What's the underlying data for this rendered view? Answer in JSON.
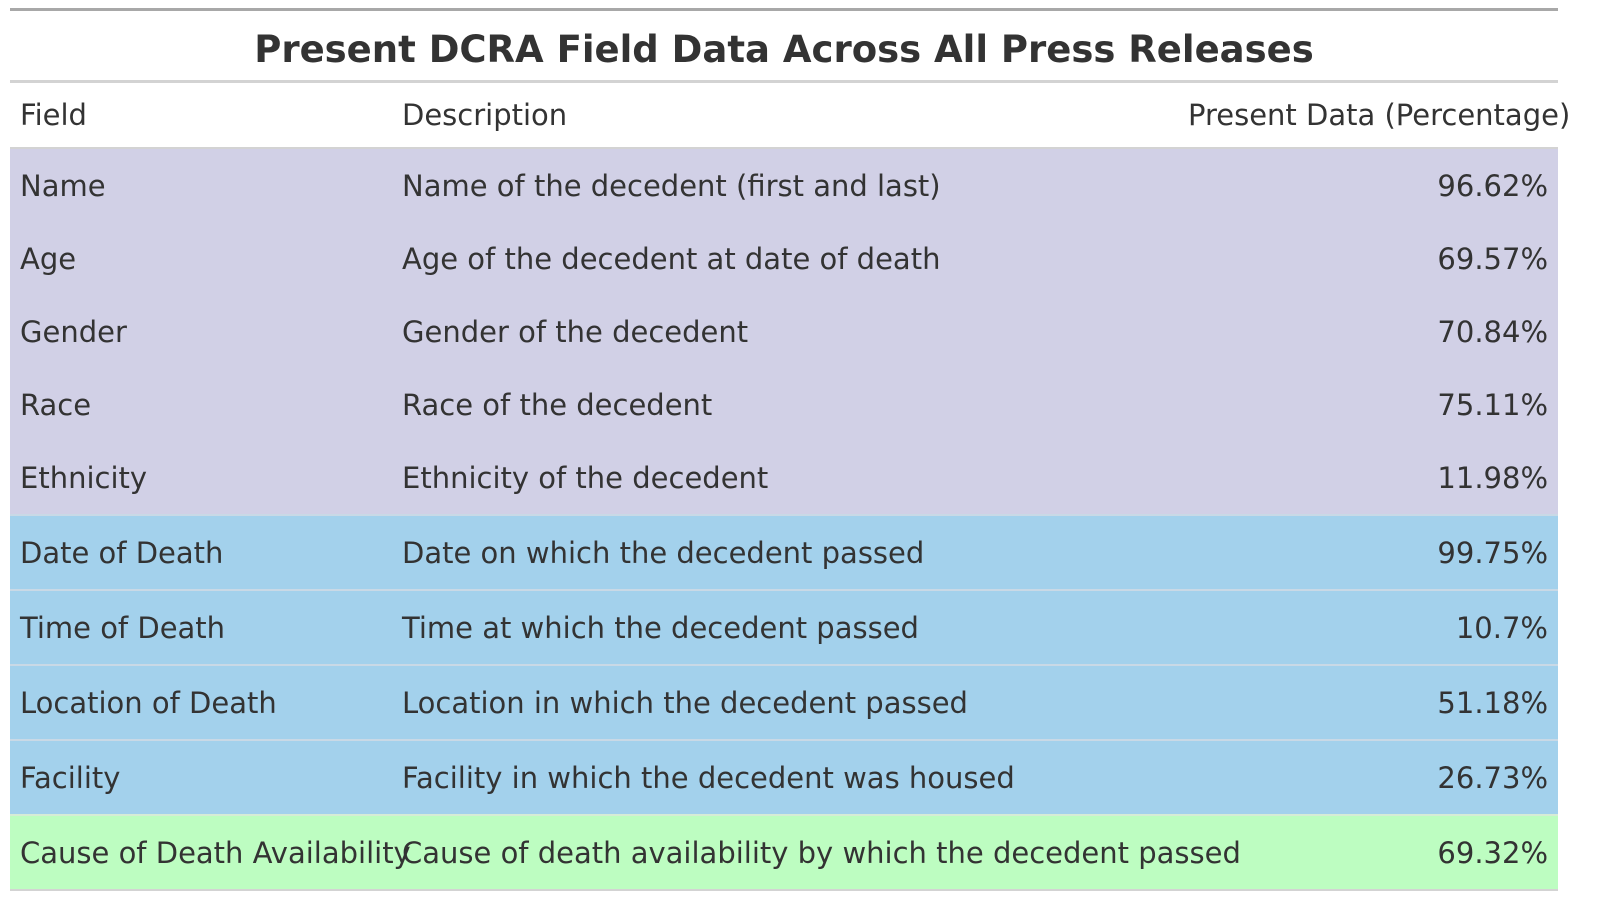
{
  "table": {
    "title": "Present DCRA Field Data Across All Press Releases",
    "columns": {
      "field": "Field",
      "description": "Description",
      "percentage": "Present Data (Percentage)"
    },
    "group_colors": {
      "demographic": "#d1d0e6",
      "death": "#a3d1ec",
      "cause": "#bdfdc1"
    },
    "rows": [
      {
        "field": "Name",
        "description": "Name of the decedent (first and last)",
        "percentage": "96.62%",
        "group": "demographic"
      },
      {
        "field": "Age",
        "description": "Age of the decedent at date of death",
        "percentage": "69.57%",
        "group": "demographic"
      },
      {
        "field": "Gender",
        "description": "Gender of the decedent",
        "percentage": "70.84%",
        "group": "demographic"
      },
      {
        "field": "Race",
        "description": "Race of the decedent",
        "percentage": "75.11%",
        "group": "demographic"
      },
      {
        "field": "Ethnicity",
        "description": "Ethnicity of the decedent",
        "percentage": "11.98%",
        "group": "demographic"
      },
      {
        "field": "Date of Death",
        "description": "Date on which the decedent passed",
        "percentage": "99.75%",
        "group": "death"
      },
      {
        "field": "Time of Death",
        "description": "Time at which the decedent passed",
        "percentage": "10.7%",
        "group": "death"
      },
      {
        "field": "Location of Death",
        "description": "Location in which the decedent passed",
        "percentage": "51.18%",
        "group": "death"
      },
      {
        "field": "Facility",
        "description": "Facility in which the decedent was housed",
        "percentage": "26.73%",
        "group": "death"
      },
      {
        "field": "Cause of Death Availability",
        "description": "Cause of death availability by which the decedent passed",
        "percentage": "69.32%",
        "group": "cause"
      }
    ]
  }
}
